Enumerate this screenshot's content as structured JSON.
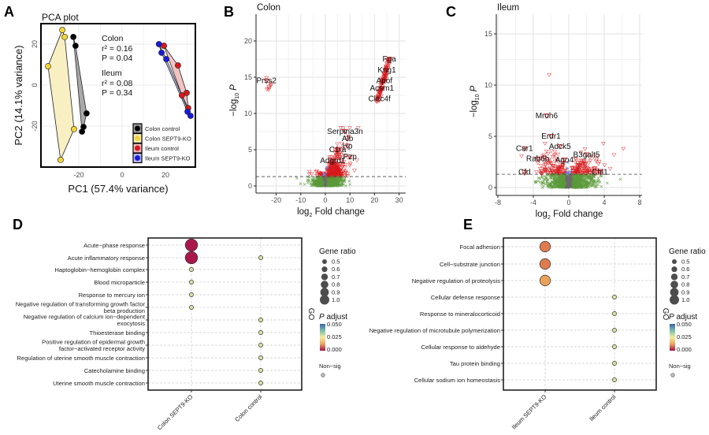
{
  "panels": {
    "a": "A",
    "b": "B",
    "c": "C",
    "d": "D",
    "e": "E"
  },
  "chart_data": [
    {
      "type": "scatter",
      "panel": "A",
      "title": "PCA plot",
      "xlabel": "PC1 (57.4% variance)",
      "ylabel": "PC2 (14.1% variance)",
      "xticks": [
        "-20",
        "0",
        "20"
      ],
      "yticks": [
        "20",
        "0",
        "-20"
      ],
      "xlim": [
        -38,
        34
      ],
      "ylim": [
        -40,
        30
      ],
      "annotations": [
        "Colon",
        "r² = 0.16",
        "P = 0.04",
        "Ileum",
        "r² = 0.08",
        "P = 0.34"
      ],
      "legend_position": "bottom-right",
      "series": [
        {
          "name": "Colon control",
          "color": "#000000",
          "fill": "#9a9a9a",
          "points": [
            [
              -22.5,
              23.5
            ],
            [
              -21.5,
              19.2
            ],
            [
              -16.4,
              -13.8
            ],
            [
              -17.8,
              -20.4
            ],
            [
              -18.5,
              -22.7
            ]
          ]
        },
        {
          "name": "Colon SEPT9-KO",
          "color": "#f2d43a",
          "fill": "#f7edb8",
          "points": [
            [
              -27.6,
              26.9
            ],
            [
              -26.5,
              23.5
            ],
            [
              -34.2,
              9.2
            ],
            [
              -22.2,
              -21.5
            ],
            [
              -28.4,
              -36.5
            ]
          ]
        },
        {
          "name": "Ileum control",
          "color": "#d7191c",
          "fill": "#f0b8b8",
          "points": [
            [
              19.3,
              19.2
            ],
            [
              25.8,
              9.6
            ],
            [
              29.8,
              -3.8
            ],
            [
              27.6,
              -5
            ],
            [
              30.5,
              -11.2
            ]
          ]
        },
        {
          "name": "Ileum SEPT9-KO",
          "color": "#1a1adb",
          "fill": "#b8b8f0",
          "points": [
            [
              17,
              20
            ],
            [
              18.2,
              15.8
            ],
            [
              20.4,
              12.7
            ],
            [
              30.2,
              -13
            ],
            [
              31.6,
              -15
            ]
          ]
        }
      ]
    },
    {
      "type": "scatter",
      "panel": "B",
      "title": "Colon",
      "xlabel_prefix": "log",
      "xlabel_sub": "2",
      "xlabel_suffix": " Fold change",
      "ylabel_prefix": "−log",
      "ylabel_sub": "10",
      "ylabel_var": "P",
      "xticks": [
        "-20",
        "-10",
        "0",
        "10",
        "20",
        "30"
      ],
      "yticks": [
        "0",
        "5",
        "10",
        "15",
        "20"
      ],
      "xlim": [
        -29,
        31
      ],
      "ylim": [
        -1,
        24
      ],
      "threshold": 1.3,
      "colors": {
        "ns": "#5b9a3a",
        "sig": "#d7191c",
        "fc_only": "#6b6b6b",
        "p_only": "#6f83e0"
      },
      "labeled_genes": [
        {
          "gene": "Fga",
          "x": 26,
          "y": 17.5
        },
        {
          "gene": "Kng1",
          "x": 25,
          "y": 16
        },
        {
          "gene": "Apof",
          "x": 24,
          "y": 14.5
        },
        {
          "gene": "Acsm1",
          "x": 23,
          "y": 13.5
        },
        {
          "gene": "Clec4f",
          "x": 22,
          "y": 12
        },
        {
          "gene": "Prss2",
          "x": -24,
          "y": 14.5
        },
        {
          "gene": "Serpina3n",
          "x": 8,
          "y": 7.5
        },
        {
          "gene": "Alb",
          "x": 9,
          "y": 6.5
        },
        {
          "gene": "Hp",
          "x": 9,
          "y": 5.5
        },
        {
          "gene": "C1ra",
          "x": 5,
          "y": 5
        },
        {
          "gene": "Pzp",
          "x": 10,
          "y": 4
        },
        {
          "gene": "Adgrd1",
          "x": 3,
          "y": 3.5
        }
      ]
    },
    {
      "type": "scatter",
      "panel": "C",
      "title": "Ileum",
      "xlabel_prefix": "log",
      "xlabel_sub": "2",
      "xlabel_suffix": " Fold change",
      "ylabel_prefix": "−log",
      "ylabel_sub": "10",
      "ylabel_var": "P",
      "xticks": [
        "-8",
        "-4",
        "0",
        "4",
        "8"
      ],
      "yticks": [
        "0",
        "5",
        "10",
        "15"
      ],
      "xlim": [
        -8,
        8
      ],
      "ylim": [
        -0.5,
        17
      ],
      "threshold": 1.3,
      "colors": {
        "ns": "#5b9a3a",
        "sig": "#d7191c",
        "fc_only": "#6b6b6b",
        "p_only": "#6f83e0"
      },
      "labeled_genes": [
        {
          "gene": "Mroh6",
          "x": -2.5,
          "y": 7
        },
        {
          "gene": "Erdr1",
          "x": -2,
          "y": 5
        },
        {
          "gene": "Adck5",
          "x": -1,
          "y": 4
        },
        {
          "gene": "Car1",
          "x": -5,
          "y": 3.8
        },
        {
          "gene": "Rab6b",
          "x": -3.5,
          "y": 2.8
        },
        {
          "gene": "Ago4",
          "x": -0.5,
          "y": 2.7
        },
        {
          "gene": "B3galt5",
          "x": 2,
          "y": 3.2
        },
        {
          "gene": "Cfd",
          "x": -5,
          "y": 1.5
        },
        {
          "gene": "Chl1",
          "x": 3.5,
          "y": 1.5
        }
      ]
    },
    {
      "type": "scatter",
      "panel": "D",
      "ylabel": "GO",
      "categories": [
        "Colon SEPT9-KO",
        "Colon control"
      ],
      "terms": [
        {
          "lines": [
            "Acute−phase response"
          ],
          "points": [
            {
              "group": 0,
              "gene_ratio": 1.0,
              "p_adjust": 0.001
            }
          ]
        },
        {
          "lines": [
            "Acute inflammatory response"
          ],
          "points": [
            {
              "group": 0,
              "gene_ratio": 1.0,
              "p_adjust": 0.001
            },
            {
              "group": 1,
              "gene_ratio": 0.5,
              "p_adjust": 0.03
            }
          ]
        },
        {
          "lines": [
            "Haptoglobin−hemoglobin complex"
          ],
          "points": [
            {
              "group": 0,
              "gene_ratio": 0.5,
              "p_adjust": 0.03
            }
          ]
        },
        {
          "lines": [
            "Blood microparticle"
          ],
          "points": [
            {
              "group": 0,
              "gene_ratio": 0.5,
              "p_adjust": 0.03
            }
          ]
        },
        {
          "lines": [
            "Response to mercury ion"
          ],
          "points": [
            {
              "group": 0,
              "gene_ratio": 0.5,
              "p_adjust": 0.03
            }
          ]
        },
        {
          "lines": [
            "Negative regulation of transforming growth factor",
            "beta production"
          ],
          "points": [
            {
              "group": 0,
              "gene_ratio": 0.5,
              "p_adjust": 0.03
            }
          ]
        },
        {
          "lines": [
            "Negative regulation of calcium ion−dependent",
            "exocytosis"
          ],
          "points": [
            {
              "group": 1,
              "gene_ratio": 0.5,
              "p_adjust": 0.03
            }
          ]
        },
        {
          "lines": [
            "Thioesterase binding"
          ],
          "points": [
            {
              "group": 1,
              "gene_ratio": 0.5,
              "p_adjust": 0.03
            }
          ]
        },
        {
          "lines": [
            "Positive regulation of epidermal growth",
            "factor−activated receptor activity"
          ],
          "points": [
            {
              "group": 1,
              "gene_ratio": 0.5,
              "p_adjust": 0.03
            }
          ]
        },
        {
          "lines": [
            "Regulation of uterine smooth muscle contraction"
          ],
          "points": [
            {
              "group": 1,
              "gene_ratio": 0.5,
              "p_adjust": 0.03
            }
          ]
        },
        {
          "lines": [
            "Catecholamine binding"
          ],
          "points": [
            {
              "group": 1,
              "gene_ratio": 0.5,
              "p_adjust": 0.03
            }
          ]
        },
        {
          "lines": [
            "Uterine smooth muscle contraction"
          ],
          "points": [
            {
              "group": 1,
              "gene_ratio": 0.5,
              "p_adjust": 0.03
            }
          ]
        }
      ],
      "legend": {
        "size_title": "Gene ratio",
        "size_values": [
          "0.5",
          "0.6",
          "0.7",
          "0.8",
          "0.9",
          "1.0"
        ],
        "color_title_var": "P",
        "color_title": " adjust",
        "color_ticks": [
          "0.050",
          "0.025",
          "0.000"
        ],
        "nonsig": "Non−sig"
      }
    },
    {
      "type": "scatter",
      "panel": "E",
      "ylabel": "GO",
      "categories": [
        "Ileum SEPT9-KO",
        "Ileum control"
      ],
      "terms": [
        {
          "lines": [
            "Focal adhesion"
          ],
          "points": [
            {
              "group": 0,
              "gene_ratio": 0.9,
              "p_adjust": 0.012
            }
          ]
        },
        {
          "lines": [
            "Cell−substrate junction"
          ],
          "points": [
            {
              "group": 0,
              "gene_ratio": 0.9,
              "p_adjust": 0.012
            }
          ]
        },
        {
          "lines": [
            "Negative regulation of proteolysis"
          ],
          "points": [
            {
              "group": 0,
              "gene_ratio": 0.9,
              "p_adjust": 0.018
            }
          ]
        },
        {
          "lines": [
            "Cellular defense response"
          ],
          "points": [
            {
              "group": 1,
              "gene_ratio": 0.5,
              "p_adjust": 0.03
            }
          ]
        },
        {
          "lines": [
            "Response to mineralocorticoid"
          ],
          "points": [
            {
              "group": 1,
              "gene_ratio": 0.5,
              "p_adjust": 0.03
            }
          ]
        },
        {
          "lines": [
            "Negative regulation of microtubule polymerization"
          ],
          "points": [
            {
              "group": 1,
              "gene_ratio": 0.5,
              "p_adjust": 0.03
            }
          ]
        },
        {
          "lines": [
            "Cellular response to aldehyde"
          ],
          "points": [
            {
              "group": 1,
              "gene_ratio": 0.5,
              "p_adjust": 0.03
            }
          ]
        },
        {
          "lines": [
            "Tau protein binding"
          ],
          "points": [
            {
              "group": 1,
              "gene_ratio": 0.5,
              "p_adjust": 0.03
            }
          ]
        },
        {
          "lines": [
            "Cellular sodium ion homeostasis"
          ],
          "points": [
            {
              "group": 1,
              "gene_ratio": 0.5,
              "p_adjust": 0.03
            }
          ]
        }
      ],
      "legend": {
        "size_title": "Gene ratio",
        "size_values": [
          "0.5",
          "0.6",
          "0.7",
          "0.8",
          "0.9",
          "1.0"
        ],
        "color_title_var": "P",
        "color_title": " adjust",
        "color_ticks": [
          "0.050",
          "0.025",
          "0.000"
        ],
        "nonsig": "Non−sig"
      }
    }
  ]
}
